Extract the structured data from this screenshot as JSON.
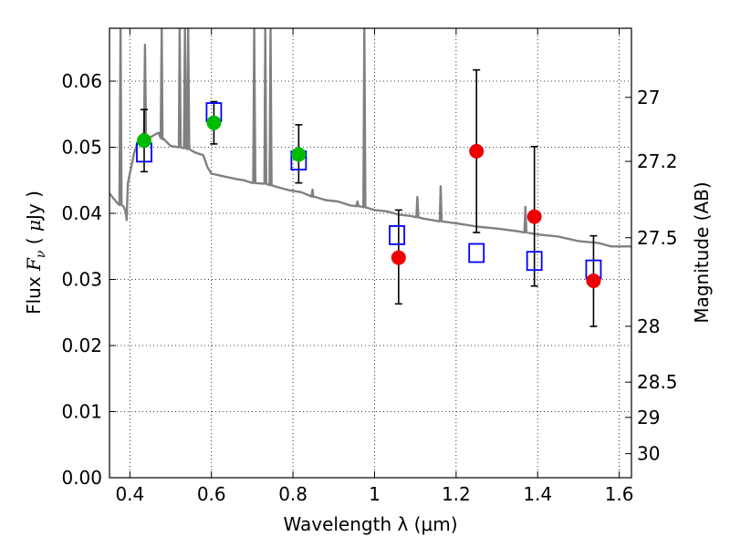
{
  "chart_data": {
    "type": "scatter",
    "title": "",
    "xlabel": "Wavelength  λ (μm)",
    "ylabel_parts": [
      "Flux  ",
      "F",
      "ν",
      "  ( ",
      "μ",
      "Jy )"
    ],
    "y2label": "Magnitude (AB)",
    "xlim": [
      0.35,
      1.63
    ],
    "ylim": [
      0.0,
      0.068
    ],
    "grid": true,
    "x_ticks": [
      0.4,
      0.6,
      0.8,
      1.0,
      1.2,
      1.4,
      1.6
    ],
    "x_tick_labels": [
      "0.4",
      "0.6",
      "0.8",
      "1",
      "1.2",
      "1.4",
      "1.6"
    ],
    "y_ticks": [
      0.0,
      0.01,
      0.02,
      0.03,
      0.04,
      0.05,
      0.06
    ],
    "y_tick_labels": [
      "0.00",
      "0.01",
      "0.02",
      "0.03",
      "0.04",
      "0.05",
      "0.06"
    ],
    "y2_ticks": [
      27,
      27.2,
      27.5,
      28,
      28.5,
      29,
      30
    ],
    "y2_tick_labels": [
      "27",
      "27.2",
      "27.5",
      "28",
      "28.5",
      "29",
      "30"
    ],
    "model_photometry": {
      "marker": "open-square",
      "color": "#0000ff",
      "points": [
        {
          "x": 0.435,
          "y": 0.0492
        },
        {
          "x": 0.606,
          "y": 0.0553
        },
        {
          "x": 0.814,
          "y": 0.048
        },
        {
          "x": 1.055,
          "y": 0.0367
        },
        {
          "x": 1.25,
          "y": 0.034
        },
        {
          "x": 1.392,
          "y": 0.0328
        },
        {
          "x": 1.537,
          "y": 0.0315
        }
      ]
    },
    "observed_optical": {
      "marker": "filled-circle",
      "color": "#00bb00",
      "points": [
        {
          "x": 0.435,
          "y": 0.051,
          "err_lo": 0.0463,
          "err_hi": 0.0557
        },
        {
          "x": 0.606,
          "y": 0.0537,
          "err_lo": 0.0505,
          "err_hi": 0.0569
        },
        {
          "x": 0.814,
          "y": 0.0489,
          "err_lo": 0.0446,
          "err_hi": 0.0534
        }
      ]
    },
    "observed_infrared": {
      "marker": "filled-circle",
      "color": "#ee0000",
      "points": [
        {
          "x": 1.059,
          "y": 0.0333,
          "err_lo": 0.0263,
          "err_hi": 0.0405
        },
        {
          "x": 1.25,
          "y": 0.0494,
          "err_lo": 0.0371,
          "err_hi": 0.0617
        },
        {
          "x": 1.392,
          "y": 0.0395,
          "err_lo": 0.029,
          "err_hi": 0.0501
        },
        {
          "x": 1.537,
          "y": 0.0298,
          "err_lo": 0.0229,
          "err_hi": 0.0366
        }
      ]
    },
    "model_spectrum": {
      "color": "#808080",
      "continuum": [
        [
          0.35,
          0.043
        ],
        [
          0.37,
          0.0415
        ],
        [
          0.385,
          0.041
        ],
        [
          0.39,
          0.0402
        ],
        [
          0.392,
          0.039
        ],
        [
          0.395,
          0.0445
        ],
        [
          0.4,
          0.046
        ],
        [
          0.41,
          0.049
        ],
        [
          0.42,
          0.051
        ],
        [
          0.43,
          0.052
        ],
        [
          0.45,
          0.0515
        ],
        [
          0.47,
          0.0522
        ],
        [
          0.48,
          0.0512
        ],
        [
          0.5,
          0.0502
        ],
        [
          0.52,
          0.05
        ],
        [
          0.54,
          0.0498
        ],
        [
          0.56,
          0.0492
        ],
        [
          0.58,
          0.0488
        ],
        [
          0.59,
          0.047
        ],
        [
          0.6,
          0.046
        ],
        [
          0.63,
          0.0456
        ],
        [
          0.66,
          0.0452
        ],
        [
          0.68,
          0.045
        ],
        [
          0.7,
          0.0446
        ],
        [
          0.73,
          0.0445
        ],
        [
          0.76,
          0.044
        ],
        [
          0.79,
          0.0435
        ],
        [
          0.82,
          0.0432
        ],
        [
          0.85,
          0.0425
        ],
        [
          0.88,
          0.042
        ],
        [
          0.91,
          0.0418
        ],
        [
          0.94,
          0.0412
        ],
        [
          0.97,
          0.041
        ],
        [
          1.0,
          0.0405
        ],
        [
          1.03,
          0.0403
        ],
        [
          1.06,
          0.0398
        ],
        [
          1.09,
          0.0396
        ],
        [
          1.12,
          0.0392
        ],
        [
          1.16,
          0.0388
        ],
        [
          1.2,
          0.0385
        ],
        [
          1.25,
          0.038
        ],
        [
          1.3,
          0.0377
        ],
        [
          1.35,
          0.0373
        ],
        [
          1.4,
          0.0368
        ],
        [
          1.45,
          0.0365
        ],
        [
          1.5,
          0.0358
        ],
        [
          1.55,
          0.0355
        ],
        [
          1.58,
          0.035
        ],
        [
          1.63,
          0.035
        ]
      ],
      "emission_lines": [
        {
          "x": 0.377,
          "peak": 0.068
        },
        {
          "x": 0.437,
          "peak": 0.0655
        },
        {
          "x": 0.478,
          "peak": 0.068
        },
        {
          "x": 0.522,
          "peak": 0.068
        },
        {
          "x": 0.535,
          "peak": 0.068
        },
        {
          "x": 0.543,
          "peak": 0.068
        },
        {
          "x": 0.705,
          "peak": 0.068
        },
        {
          "x": 0.732,
          "peak": 0.068
        },
        {
          "x": 0.745,
          "peak": 0.068
        },
        {
          "x": 0.848,
          "peak": 0.0436
        },
        {
          "x": 0.958,
          "peak": 0.0418
        },
        {
          "x": 0.975,
          "peak": 0.068
        },
        {
          "x": 1.105,
          "peak": 0.0425
        },
        {
          "x": 1.162,
          "peak": 0.0441
        },
        {
          "x": 1.37,
          "peak": 0.041
        }
      ]
    }
  }
}
